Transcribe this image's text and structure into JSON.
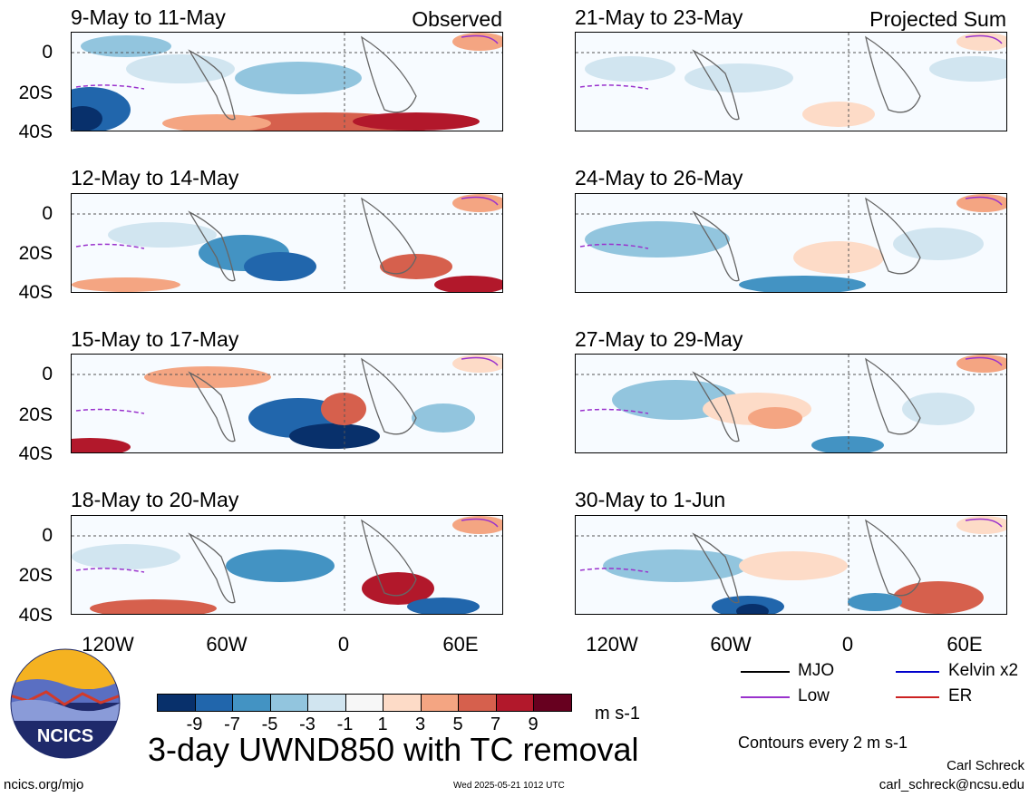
{
  "panels": [
    {
      "title": "9-May to 11-May",
      "label": "Observed"
    },
    {
      "title": "12-May to 14-May",
      "label": ""
    },
    {
      "title": "15-May to 17-May",
      "label": ""
    },
    {
      "title": "18-May to 20-May",
      "label": ""
    },
    {
      "title": "21-May to 23-May",
      "label": "Projected Sum"
    },
    {
      "title": "24-May to 26-May",
      "label": ""
    },
    {
      "title": "27-May to 29-May",
      "label": ""
    },
    {
      "title": "30-May to 1-Jun",
      "label": ""
    }
  ],
  "y_ticks": [
    "0",
    "20S",
    "40S"
  ],
  "x_ticks": [
    "120W",
    "60W",
    "0",
    "60E"
  ],
  "colorbar": {
    "colors": [
      "#08306b",
      "#2166ac",
      "#4393c3",
      "#92c5de",
      "#d1e5f0",
      "#f7f7f7",
      "#fddbc7",
      "#f4a582",
      "#d6604d",
      "#b2182b",
      "#67001f"
    ],
    "labels": [
      "-9",
      "-7",
      "-5",
      "-3",
      "-1",
      "1",
      "3",
      "5",
      "7",
      "9"
    ],
    "units": "m s-1"
  },
  "legend": {
    "mjo": "MJO",
    "kelvin": "Kelvin x2",
    "low": "Low",
    "er": "ER",
    "colors": {
      "mjo": "#000000",
      "kelvin": "#0000cc",
      "low": "#9a32cd",
      "er": "#cc2222"
    }
  },
  "main_title": "3-day UWND850 with TC removal",
  "contour_note": "Contours every 2 m s-1",
  "logo_text": "NCICS",
  "footer": {
    "url": "ncics.org/mjo",
    "timestamp": "Wed 2025-05-21 1012 UTC",
    "author": "Carl Schreck",
    "email": "carl_schreck@ncsu.edu"
  }
}
